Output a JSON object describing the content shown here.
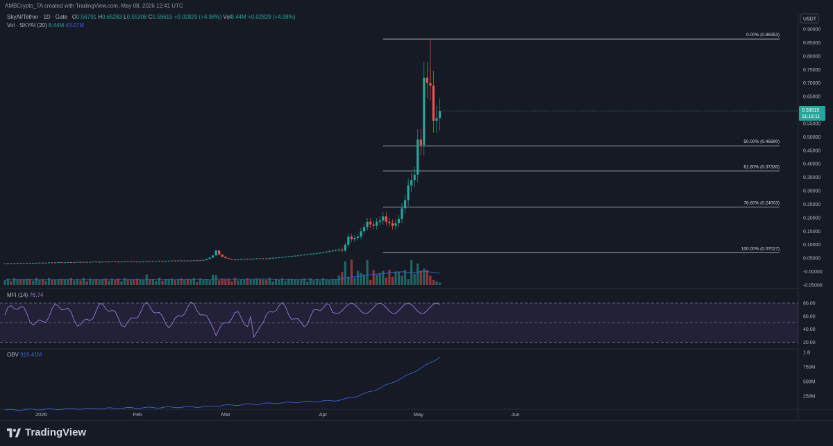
{
  "header": {
    "credit": "AMBCrypto_TA created with TradingView.com, May 08, 2026 12:41 UTC",
    "symbol": "SkyAI/Tether · 1D · Gate",
    "o_label": "O",
    "o_value": "0.56791",
    "h_label": "H",
    "h_value": "0.65283",
    "l_label": "L",
    "l_value": "0.55308",
    "c_label": "C",
    "c_value": "0.59615",
    "change": "+0.02829 (+4.98%)",
    "vol_label": "Vol",
    "vol_value": "8.44M",
    "vol_change": "+0.02829 (+4.98%)",
    "vol_indicator": "Vol · SKYAI (20)",
    "vol_ind_value": "8.44M",
    "vol_ind_ma": "43.07M"
  },
  "currency": "USDT",
  "price_badge": {
    "price": "0.59615",
    "countdown": "11:18:11"
  },
  "price_axis": [
    "0.90000",
    "0.85000",
    "0.80000",
    "0.75000",
    "0.70000",
    "0.65000",
    "0.60000",
    "0.55000",
    "0.50000",
    "0.45000",
    "0.40000",
    "0.35000",
    "0.30000",
    "0.25000",
    "0.20000",
    "0.15000",
    "0.10000",
    "0.05000",
    "-0.00000",
    "-0.05000"
  ],
  "mfi": {
    "label": "MFI (14)",
    "value": "76.74",
    "axis": [
      "80.00",
      "60.00",
      "40.00",
      "20.00"
    ]
  },
  "obv": {
    "label": "OBV",
    "value": "919.41M",
    "axis": [
      "1 B",
      "750M",
      "500M",
      "250M"
    ]
  },
  "time_axis": [
    "2026",
    "Feb",
    "Mar",
    "Apr",
    "May",
    "Jun"
  ],
  "fib_levels": [
    {
      "label": "0.00% (0.86353)",
      "price": 0.86353
    },
    {
      "label": "50.00% (0.46690)",
      "price": 0.4669
    },
    {
      "label": "61.80% (0.37330)",
      "price": 0.3733
    },
    {
      "label": "78.60% (0.24003)",
      "price": 0.24003
    },
    {
      "label": "100.00% (0.07027)",
      "price": 0.07027
    }
  ],
  "colors": {
    "up": "#26a69a",
    "down": "#ef5350",
    "mfi": "#9c7ad8",
    "obv": "#3f5fd6",
    "vol_ma": "#3f5fd6",
    "fib": "#d1d4dc",
    "bg": "#161a25"
  },
  "footer": {
    "brand": "TradingView"
  },
  "chart_data": {
    "type": "candlestick",
    "title": "SkyAI/Tether · 1D · Gate",
    "ylim": [
      -0.05,
      0.9
    ],
    "x": [
      "2025-12-21",
      "2025-12-22",
      "2025-12-23",
      "2025-12-24",
      "2025-12-25",
      "2025-12-26",
      "2025-12-27",
      "2025-12-28",
      "2025-12-29",
      "2025-12-30",
      "2025-12-31",
      "2026-01-01",
      "2026-01-02",
      "2026-01-03",
      "2026-01-04",
      "2026-01-05",
      "2026-01-06",
      "2026-01-07",
      "2026-01-08",
      "2026-01-09",
      "2026-01-10",
      "2026-01-11",
      "2026-01-12",
      "2026-01-13",
      "2026-01-14",
      "2026-01-15",
      "2026-01-16",
      "2026-01-17",
      "2026-01-18",
      "2026-01-19",
      "2026-01-20",
      "2026-01-21",
      "2026-01-22",
      "2026-01-23",
      "2026-01-24",
      "2026-01-25",
      "2026-01-26",
      "2026-01-27",
      "2026-01-28",
      "2026-01-29",
      "2026-01-30",
      "2026-01-31",
      "2026-02-01",
      "2026-02-02",
      "2026-02-03",
      "2026-02-04",
      "2026-02-05",
      "2026-02-06",
      "2026-02-07",
      "2026-02-08",
      "2026-02-09",
      "2026-02-10",
      "2026-02-11",
      "2026-02-12",
      "2026-02-13",
      "2026-02-14",
      "2026-02-15",
      "2026-02-16",
      "2026-02-17",
      "2026-02-18",
      "2026-02-19",
      "2026-02-20",
      "2026-02-21",
      "2026-02-22",
      "2026-02-23",
      "2026-02-24",
      "2026-02-25",
      "2026-02-26",
      "2026-02-27",
      "2026-02-28",
      "2026-03-01",
      "2026-03-02",
      "2026-03-03",
      "2026-03-04",
      "2026-03-05",
      "2026-03-06",
      "2026-03-07",
      "2026-03-08",
      "2026-03-09",
      "2026-03-10",
      "2026-03-11",
      "2026-03-12",
      "2026-03-13",
      "2026-03-14",
      "2026-03-15",
      "2026-03-16",
      "2026-03-17",
      "2026-03-18",
      "2026-03-19",
      "2026-03-20",
      "2026-03-21",
      "2026-03-22",
      "2026-03-23",
      "2026-03-24",
      "2026-03-25",
      "2026-03-26",
      "2026-03-27",
      "2026-03-28",
      "2026-03-29",
      "2026-03-30",
      "2026-03-31",
      "2026-04-01",
      "2026-04-02",
      "2026-04-03",
      "2026-04-04",
      "2026-04-05",
      "2026-04-06",
      "2026-04-07",
      "2026-04-08",
      "2026-04-09",
      "2026-04-10",
      "2026-04-11",
      "2026-04-12",
      "2026-04-13",
      "2026-04-14",
      "2026-04-15",
      "2026-04-16",
      "2026-04-17",
      "2026-04-18",
      "2026-04-19",
      "2026-04-20",
      "2026-04-21",
      "2026-04-22",
      "2026-04-23",
      "2026-04-24",
      "2026-04-25",
      "2026-04-26",
      "2026-04-27",
      "2026-04-28",
      "2026-04-29",
      "2026-04-30",
      "2026-05-01",
      "2026-05-02",
      "2026-05-03",
      "2026-05-04",
      "2026-05-05",
      "2026-05-06",
      "2026-05-07",
      "2026-05-08"
    ],
    "close": [
      0.03,
      0.031,
      0.03,
      0.031,
      0.032,
      0.031,
      0.031,
      0.032,
      0.031,
      0.032,
      0.032,
      0.033,
      0.032,
      0.033,
      0.034,
      0.033,
      0.034,
      0.035,
      0.034,
      0.034,
      0.035,
      0.034,
      0.035,
      0.036,
      0.035,
      0.036,
      0.035,
      0.036,
      0.037,
      0.036,
      0.036,
      0.037,
      0.036,
      0.037,
      0.038,
      0.037,
      0.036,
      0.037,
      0.038,
      0.037,
      0.038,
      0.037,
      0.036,
      0.037,
      0.038,
      0.039,
      0.038,
      0.038,
      0.039,
      0.04,
      0.039,
      0.039,
      0.04,
      0.041,
      0.04,
      0.041,
      0.04,
      0.041,
      0.04,
      0.041,
      0.042,
      0.041,
      0.042,
      0.043,
      0.047,
      0.052,
      0.06,
      0.078,
      0.063,
      0.055,
      0.05,
      0.047,
      0.045,
      0.044,
      0.045,
      0.046,
      0.047,
      0.046,
      0.047,
      0.048,
      0.049,
      0.048,
      0.049,
      0.048,
      0.05,
      0.051,
      0.052,
      0.053,
      0.054,
      0.055,
      0.056,
      0.058,
      0.059,
      0.06,
      0.062,
      0.063,
      0.065,
      0.066,
      0.067,
      0.068,
      0.07,
      0.072,
      0.074,
      0.076,
      0.078,
      0.08,
      0.082,
      0.078,
      0.1,
      0.13,
      0.12,
      0.125,
      0.13,
      0.15,
      0.165,
      0.185,
      0.175,
      0.17,
      0.185,
      0.19,
      0.205,
      0.185,
      0.18,
      0.17,
      0.18,
      0.195,
      0.235,
      0.265,
      0.32,
      0.34,
      0.36,
      0.49,
      0.47,
      0.72,
      0.7,
      0.69,
      0.56,
      0.57,
      0.596
    ],
    "volume_ma_period": 20
  }
}
